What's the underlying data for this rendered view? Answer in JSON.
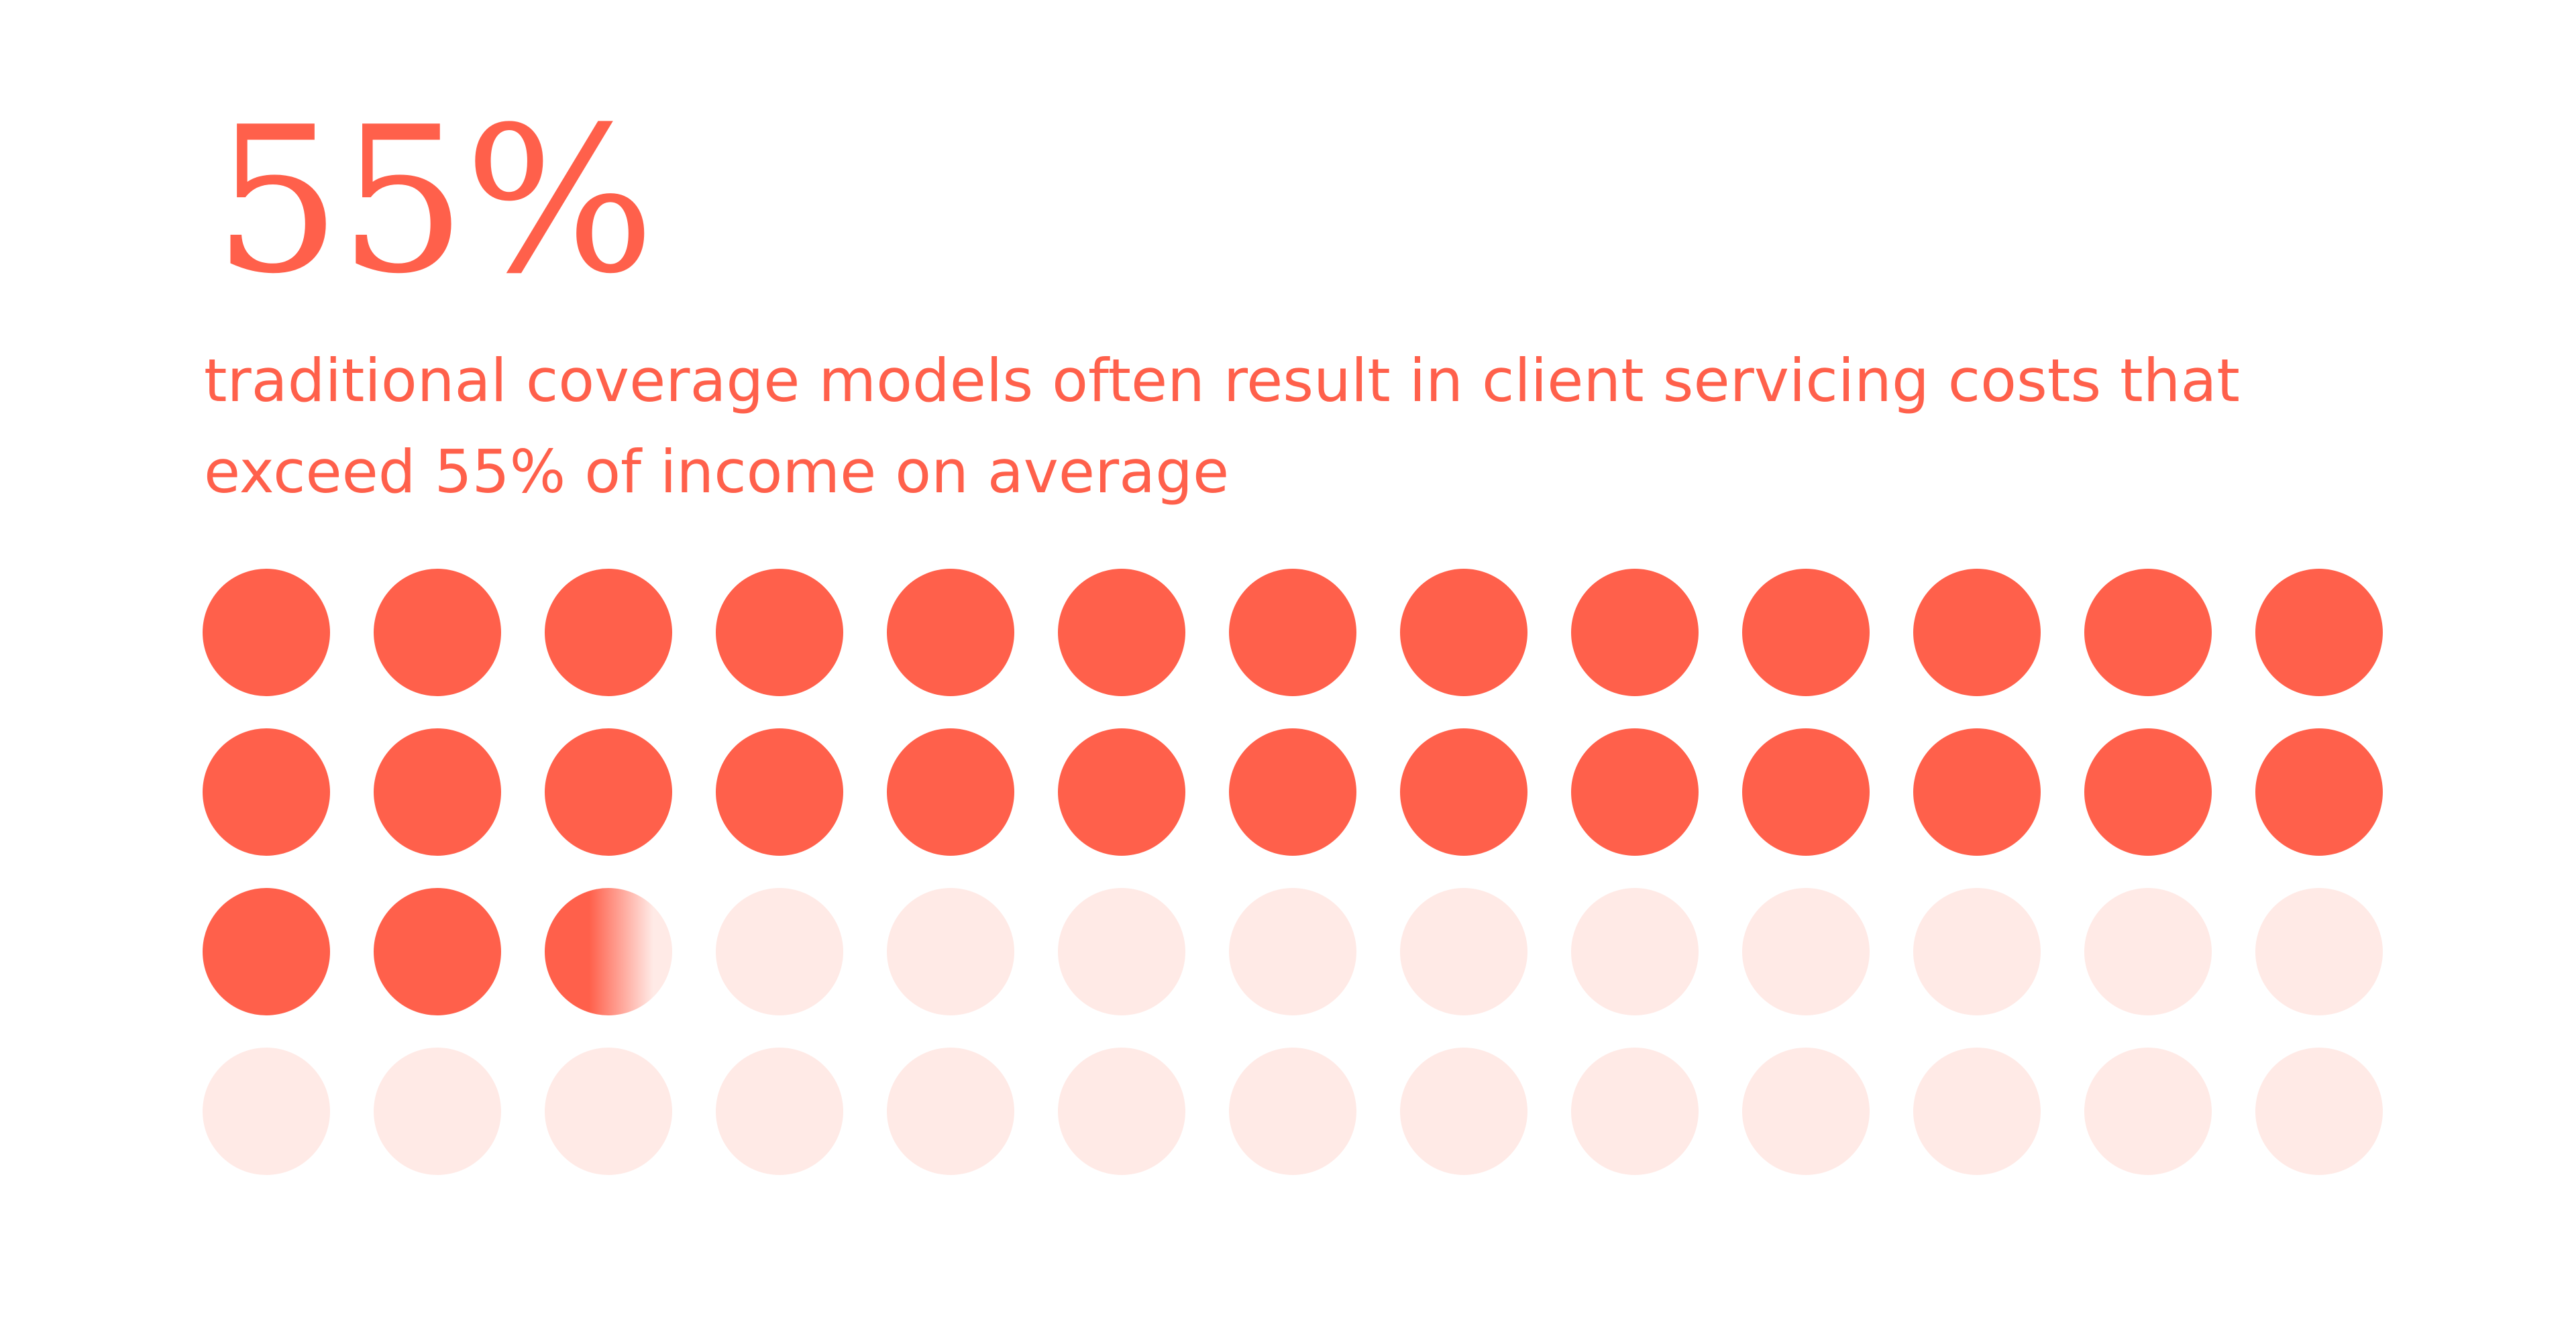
{
  "headline": "55%",
  "subtitle": "traditional coverage models often result in client servicing costs that exceed 55% of income on average",
  "colors": {
    "accent": "#ff604b",
    "empty": "#ffeae6",
    "background": "#ffffff"
  },
  "chart_data": {
    "type": "waffle",
    "rows": 4,
    "columns": 13,
    "total_units": 52,
    "value_percent": 55,
    "filled_units": 28.6,
    "fill_order": "row-major, left-to-right, top-to-bottom"
  }
}
